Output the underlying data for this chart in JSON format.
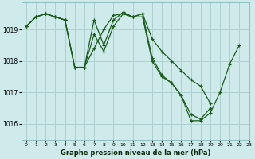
{
  "title": "Graphe pression niveau de la mer (hPa)",
  "background_color": "#ceeaea",
  "grid_color": "#aed0d0",
  "line_color": "#1a5c1a",
  "xlim": [
    -0.5,
    23
  ],
  "ylim": [
    1015.5,
    1019.85
  ],
  "yticks": [
    1016,
    1017,
    1018,
    1019
  ],
  "xticks": [
    0,
    1,
    2,
    3,
    4,
    5,
    6,
    7,
    8,
    9,
    10,
    11,
    12,
    13,
    14,
    15,
    16,
    17,
    18,
    19,
    20,
    21,
    22,
    23
  ],
  "series": [
    {
      "x": [
        0,
        1,
        2,
        3,
        4,
        5,
        6,
        7,
        8,
        9,
        10,
        11,
        12,
        13,
        14,
        15,
        16,
        17,
        18,
        19,
        20,
        21,
        22
      ],
      "y": [
        1019.1,
        1019.4,
        1019.5,
        1019.4,
        1019.3,
        1017.8,
        1017.8,
        1018.4,
        1019.0,
        1019.45,
        1019.5,
        1019.4,
        1019.4,
        1018.0,
        1017.5,
        1017.3,
        1016.9,
        1016.1,
        1016.1,
        1016.35,
        1017.0,
        1017.9,
        1018.5
      ]
    },
    {
      "x": [
        0,
        1,
        2,
        3,
        4,
        5,
        6,
        7,
        8,
        9,
        10,
        11,
        12,
        13,
        14,
        15,
        16,
        17,
        18,
        19
      ],
      "y": [
        1019.1,
        1019.4,
        1019.5,
        1019.4,
        1019.3,
        1017.8,
        1017.8,
        1018.85,
        1018.3,
        1019.1,
        1019.5,
        1019.4,
        1019.5,
        1018.1,
        1017.55,
        1017.3,
        1016.9,
        1016.3,
        1016.15,
        1016.5
      ]
    },
    {
      "x": [
        0,
        1,
        2,
        3,
        4,
        5,
        6,
        7,
        8,
        9,
        10,
        11,
        12,
        13,
        14,
        15,
        16,
        17,
        18,
        19
      ],
      "y": [
        1019.1,
        1019.4,
        1019.5,
        1019.4,
        1019.3,
        1017.8,
        1017.8,
        1019.3,
        1018.5,
        1019.3,
        1019.55,
        1019.4,
        1019.5,
        1018.7,
        1018.3,
        1018.0,
        1017.7,
        1017.4,
        1017.2,
        1016.65
      ]
    }
  ]
}
